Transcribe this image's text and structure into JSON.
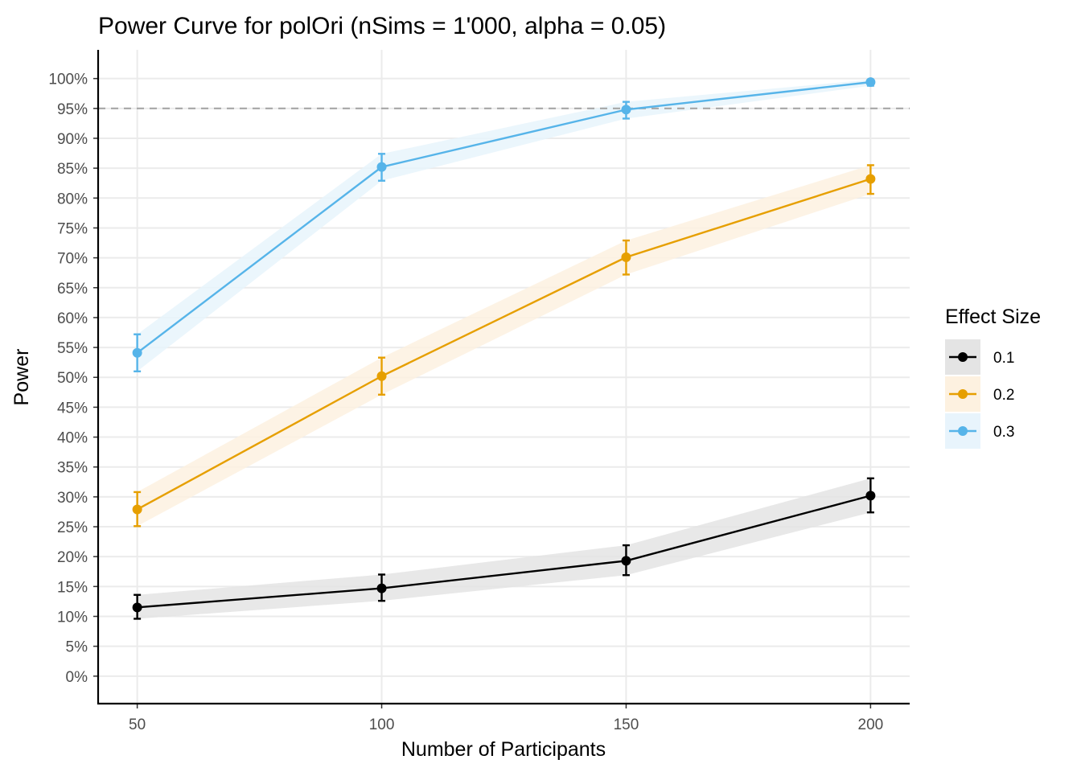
{
  "chart_data": {
    "type": "line",
    "title": "Power Curve for polOri (nSims = 1'000, alpha = 0.05)",
    "xlabel": "Number of Participants",
    "ylabel": "Power",
    "x": [
      50,
      100,
      150,
      200
    ],
    "x_tick_labels": [
      "50",
      "100",
      "150",
      "200"
    ],
    "xlim": [
      42,
      208
    ],
    "ylim": [
      -4.6,
      104.8
    ],
    "y_ticks": [
      0,
      5,
      10,
      15,
      20,
      25,
      30,
      35,
      40,
      45,
      50,
      55,
      60,
      65,
      70,
      75,
      80,
      85,
      90,
      95,
      100
    ],
    "y_tick_labels": [
      "0%",
      "5%",
      "10%",
      "15%",
      "20%",
      "25%",
      "30%",
      "35%",
      "40%",
      "45%",
      "50%",
      "55%",
      "60%",
      "65%",
      "70%",
      "75%",
      "80%",
      "85%",
      "90%",
      "95%",
      "100%"
    ],
    "grid": true,
    "reference_line": {
      "y": 95,
      "style": "dashed",
      "color": "#a6a6a6"
    },
    "legend": {
      "title": "Effect Size",
      "position": "right"
    },
    "series": [
      {
        "name": "0.1",
        "color": "#000000",
        "band_color": "#e4e4e4",
        "values": [
          11.5,
          14.7,
          19.3,
          30.2
        ],
        "ci_lower": [
          9.6,
          12.6,
          16.9,
          27.4
        ],
        "ci_upper": [
          13.6,
          17.0,
          21.9,
          33.1
        ]
      },
      {
        "name": "0.2",
        "color": "#e69f00",
        "band_color": "#fdf1e0",
        "values": [
          27.9,
          50.2,
          70.1,
          83.2
        ],
        "ci_lower": [
          25.1,
          47.1,
          67.2,
          80.7
        ],
        "ci_upper": [
          30.8,
          53.3,
          72.9,
          85.5
        ]
      },
      {
        "name": "0.3",
        "color": "#56b4e9",
        "band_color": "#e8f4fc",
        "values": [
          54.1,
          85.2,
          94.8,
          99.4
        ],
        "ci_lower": [
          51.0,
          82.9,
          93.3,
          98.8
        ],
        "ci_upper": [
          57.2,
          87.4,
          96.1,
          99.8
        ]
      }
    ]
  }
}
